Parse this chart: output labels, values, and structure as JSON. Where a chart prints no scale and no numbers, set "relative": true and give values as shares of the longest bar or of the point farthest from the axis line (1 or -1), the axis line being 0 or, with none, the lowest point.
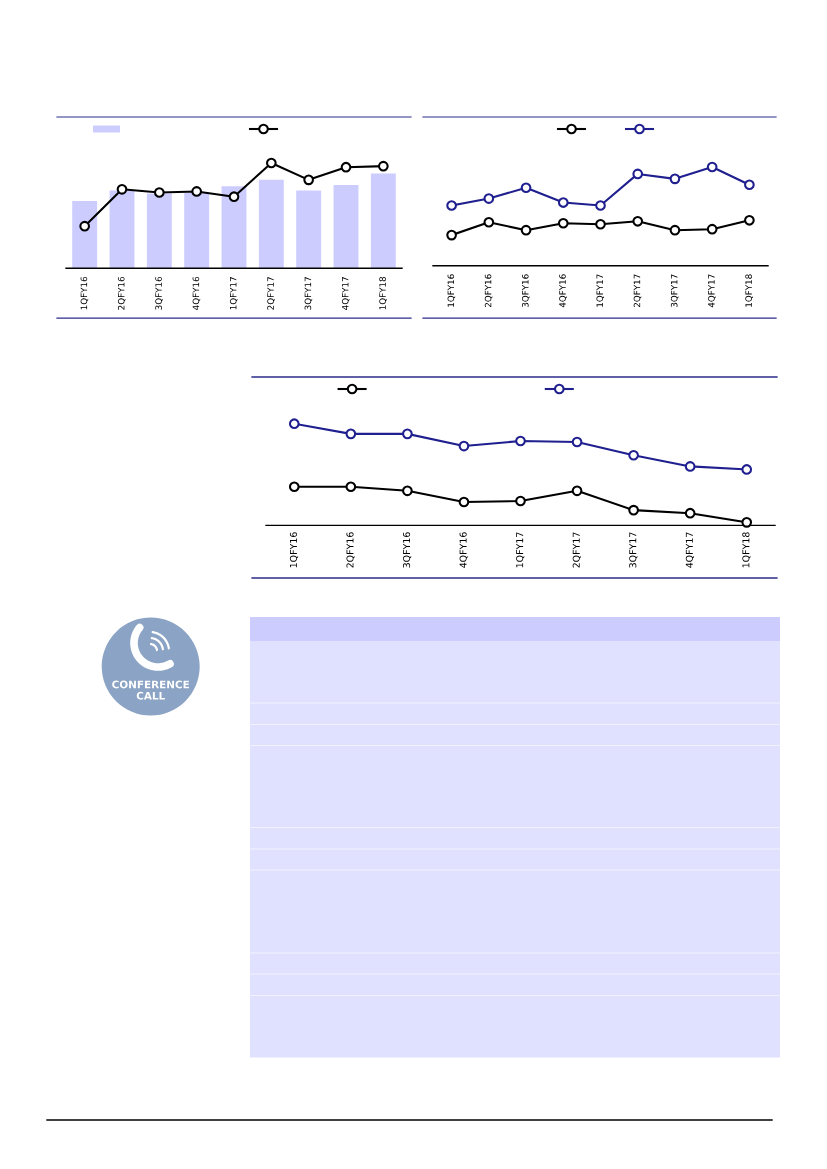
{
  "chart_data": [
    {
      "type": "bar",
      "categories": [
        "1QFY16",
        "2QFY16",
        "3QFY16",
        "4QFY16",
        "1QFY17",
        "2QFY17",
        "3QFY17",
        "4QFY17",
        "1QFY18"
      ],
      "relative": true,
      "marker": "circle",
      "line_style": "solid",
      "series": [
        {
          "type": "bar",
          "color": "#ccccff",
          "values": [
            0.64,
            0.74,
            0.71,
            0.72,
            0.78,
            0.84,
            0.74,
            0.79,
            0.9
          ]
        },
        {
          "type": "line",
          "color": "#000000",
          "values": [
            0.4,
            0.75,
            0.72,
            0.73,
            0.68,
            1.0,
            0.84,
            0.96,
            0.97
          ]
        }
      ]
    },
    {
      "type": "line",
      "categories": [
        "1QFY16",
        "2QFY16",
        "3QFY16",
        "4QFY16",
        "1QFY17",
        "2QFY17",
        "3QFY17",
        "4QFY17",
        "1QFY18"
      ],
      "relative": true,
      "marker": "circle",
      "line_style": "solid",
      "series": [
        {
          "color": "#000000",
          "values": [
            0.31,
            0.44,
            0.36,
            0.43,
            0.42,
            0.45,
            0.36,
            0.37,
            0.46
          ]
        },
        {
          "color": "#1f1f8f",
          "values": [
            0.61,
            0.68,
            0.79,
            0.64,
            0.61,
            0.93,
            0.88,
            1.0,
            0.82
          ]
        }
      ]
    },
    {
      "type": "line",
      "categories": [
        "1QFY16",
        "2QFY16",
        "3QFY16",
        "4QFY16",
        "1QFY17",
        "2QFY17",
        "3QFY17",
        "4QFY17",
        "1QFY18"
      ],
      "relative": true,
      "marker": "circle",
      "line_style": "solid",
      "series": [
        {
          "color": "#000000",
          "values": [
            0.38,
            0.38,
            0.34,
            0.23,
            0.24,
            0.34,
            0.15,
            0.12,
            0.03
          ]
        },
        {
          "color": "#1f1f8f",
          "values": [
            1.0,
            0.9,
            0.9,
            0.78,
            0.83,
            0.82,
            0.69,
            0.58,
            0.55
          ]
        }
      ]
    },
    {
      "type": "other",
      "annotations": [
        "CONFERENCE\nCALL"
      ]
    }
  ]
}
